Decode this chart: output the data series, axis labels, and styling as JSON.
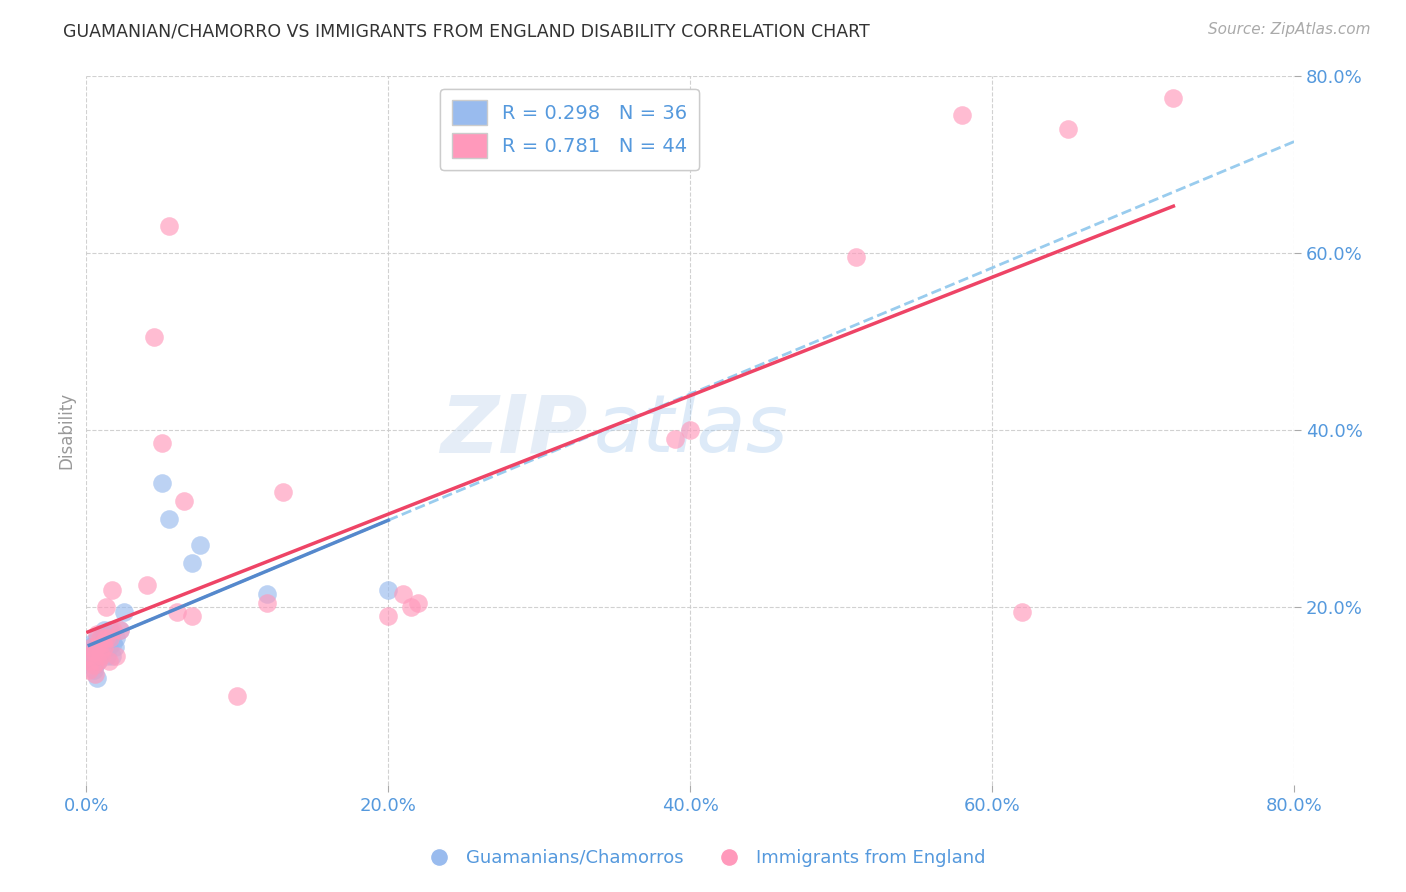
{
  "title": "GUAMANIAN/CHAMORRO VS IMMIGRANTS FROM ENGLAND DISABILITY CORRELATION CHART",
  "source": "Source: ZipAtlas.com",
  "ylabel": "Disability",
  "xlim": [
    0.0,
    0.8
  ],
  "ylim": [
    0.0,
    0.8
  ],
  "xtick_labels": [
    "0.0%",
    "20.0%",
    "40.0%",
    "60.0%",
    "80.0%"
  ],
  "xtick_vals": [
    0.0,
    0.2,
    0.4,
    0.6,
    0.8
  ],
  "ytick_labels": [
    "80.0%",
    "60.0%",
    "40.0%",
    "20.0%"
  ],
  "ytick_vals": [
    0.8,
    0.6,
    0.4,
    0.2
  ],
  "legend_labels": [
    "Guamanians/Chamorros",
    "Immigrants from England"
  ],
  "R_blue": "0.298",
  "N_blue": "36",
  "R_pink": "0.781",
  "N_pink": "44",
  "color_blue": "#99BBEE",
  "color_pink": "#FF99BB",
  "trend_blue_solid": "#5588CC",
  "trend_pink_solid": "#EE4466",
  "trend_blue_dash": "#99CCEE",
  "watermark_zip": "ZIP",
  "watermark_atlas": "atlas",
  "background_color": "#FFFFFF",
  "blue_scatter_x": [
    0.002,
    0.003,
    0.004,
    0.004,
    0.005,
    0.005,
    0.006,
    0.006,
    0.007,
    0.007,
    0.008,
    0.008,
    0.009,
    0.01,
    0.01,
    0.011,
    0.011,
    0.012,
    0.012,
    0.013,
    0.014,
    0.015,
    0.015,
    0.016,
    0.017,
    0.018,
    0.019,
    0.02,
    0.022,
    0.025,
    0.05,
    0.055,
    0.07,
    0.075,
    0.12,
    0.2
  ],
  "blue_scatter_y": [
    0.155,
    0.14,
    0.145,
    0.16,
    0.13,
    0.15,
    0.135,
    0.155,
    0.12,
    0.165,
    0.14,
    0.155,
    0.148,
    0.155,
    0.165,
    0.15,
    0.17,
    0.16,
    0.175,
    0.155,
    0.145,
    0.165,
    0.155,
    0.175,
    0.145,
    0.16,
    0.155,
    0.165,
    0.175,
    0.195,
    0.34,
    0.3,
    0.25,
    0.27,
    0.215,
    0.22
  ],
  "pink_scatter_x": [
    0.001,
    0.002,
    0.003,
    0.004,
    0.005,
    0.005,
    0.006,
    0.007,
    0.007,
    0.008,
    0.009,
    0.009,
    0.01,
    0.011,
    0.012,
    0.013,
    0.013,
    0.015,
    0.016,
    0.017,
    0.018,
    0.02,
    0.022,
    0.04,
    0.045,
    0.05,
    0.055,
    0.06,
    0.065,
    0.07,
    0.1,
    0.12,
    0.13,
    0.2,
    0.21,
    0.215,
    0.22,
    0.39,
    0.4,
    0.51,
    0.58,
    0.62,
    0.65,
    0.72
  ],
  "pink_scatter_y": [
    0.145,
    0.13,
    0.14,
    0.155,
    0.135,
    0.15,
    0.125,
    0.155,
    0.17,
    0.14,
    0.15,
    0.165,
    0.145,
    0.16,
    0.155,
    0.165,
    0.2,
    0.14,
    0.165,
    0.22,
    0.175,
    0.145,
    0.175,
    0.225,
    0.505,
    0.385,
    0.63,
    0.195,
    0.32,
    0.19,
    0.1,
    0.205,
    0.33,
    0.19,
    0.215,
    0.2,
    0.205,
    0.39,
    0.4,
    0.595,
    0.755,
    0.195,
    0.74,
    0.775
  ]
}
